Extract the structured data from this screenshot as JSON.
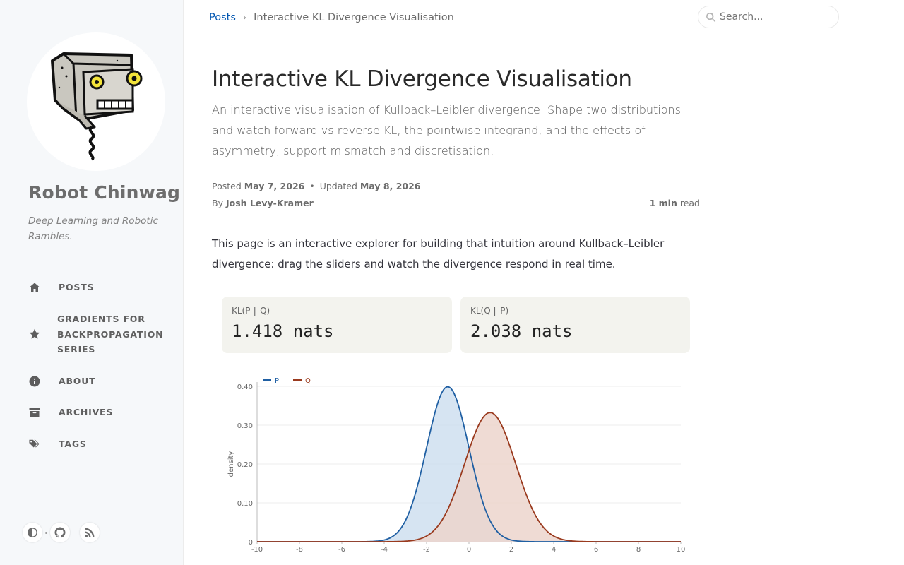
{
  "sidebar": {
    "site_title": "Robot Chinwag",
    "site_subtitle": "Deep Learning and Robotic Rambles.",
    "nav": [
      {
        "label": "POSTS",
        "icon": "home-icon"
      },
      {
        "label": "GRADIENTS FOR BACKPROPAGATION SERIES",
        "icon": "star-icon"
      },
      {
        "label": "ABOUT",
        "icon": "info-circle-icon"
      },
      {
        "label": "ARCHIVES",
        "icon": "archive-icon"
      },
      {
        "label": "TAGS",
        "icon": "tags-icon"
      }
    ],
    "bottom_icons": [
      "theme-toggle-icon",
      "github-icon",
      "rss-icon"
    ]
  },
  "topbar": {
    "breadcrumb_root": "Posts",
    "breadcrumb_sep": "›",
    "breadcrumb_current": "Interactive KL Divergence Visualisation",
    "search_placeholder": "Search..."
  },
  "post": {
    "title": "Interactive KL Divergence Visualisation",
    "description": "An interactive visualisation of Kullback–Leibler divergence. Shape two distributions and watch forward vs reverse KL, the pointwise integrand, and the effects of asymmetry, support mismatch and discretisation.",
    "posted_label": "Posted",
    "posted_date": "May 7, 2026",
    "meta_dot": "•",
    "updated_label": "Updated",
    "updated_date": "May 8, 2026",
    "by_label": "By",
    "author": "Josh Levy-Kramer",
    "read_time": "1 min",
    "read_label": "read",
    "intro": "This page is an interactive explorer for building that intuition around Kullback–Leibler divergence: drag the sliders and watch the divergence respond in real time."
  },
  "kl": {
    "forward_label": "KL(P ‖ Q)",
    "forward_value": "1.418 nats",
    "reverse_label": "KL(Q ‖ P)",
    "reverse_value": "2.038 nats"
  },
  "colors": {
    "link": "#0056b2",
    "p_line": "#1f5fa3",
    "p_fill": "#cfdff0",
    "q_line": "#9a3a1e",
    "q_fill": "#ecd5cc"
  },
  "chart_data": {
    "type": "area",
    "ylabel": "density",
    "xlim": [
      -10,
      10
    ],
    "ylim": [
      0,
      0.4
    ],
    "x_ticks": [
      "-10",
      "-8",
      "-6",
      "-4",
      "-2",
      "0",
      "2",
      "4",
      "6",
      "8",
      "10"
    ],
    "y_ticks": [
      "0",
      "0.10",
      "0.20",
      "0.30",
      "0.40"
    ],
    "legend_position": "top-left",
    "grid": true,
    "series": [
      {
        "name": "P",
        "distribution": "normal",
        "mean": -1,
        "std": 1,
        "peak": 0.399
      },
      {
        "name": "Q",
        "distribution": "normal",
        "mean": 1,
        "std": 1.2,
        "peak": 0.332
      }
    ]
  }
}
